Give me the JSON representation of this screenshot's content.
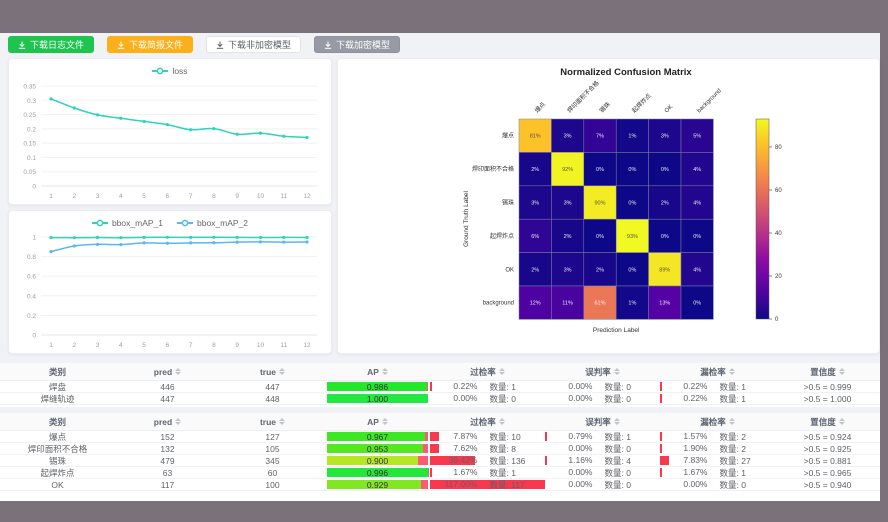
{
  "toolbar": {
    "buttons": [
      {
        "label": "下载日志文件",
        "bg": "#1fc44f",
        "fg": "#ffffff",
        "border": "#1fc44f",
        "icon": "download-icon"
      },
      {
        "label": "下载简报文件",
        "bg": "#fbb01b",
        "fg": "#ffffff",
        "border": "#fbb01b",
        "icon": "download-icon"
      },
      {
        "label": "下载非加密模型",
        "bg": "#ffffff",
        "fg": "#5a5e66",
        "border": "#e3e4ea",
        "icon": "download-icon"
      },
      {
        "label": "下载加密模型",
        "bg": "#979aa4",
        "fg": "#ffffff",
        "border": "#8f929c",
        "icon": "download-icon"
      }
    ]
  },
  "chart_data": [
    {
      "type": "line",
      "name": "loss-chart",
      "x": [
        1,
        2,
        3,
        4,
        5,
        6,
        7,
        8,
        9,
        10,
        11,
        12
      ],
      "yticks": [
        0,
        0.05,
        0.1,
        0.15,
        0.2,
        0.25,
        0.3,
        0.35
      ],
      "ylim": [
        0,
        0.35
      ],
      "legend_position": "top",
      "grid": true,
      "series": [
        {
          "name": "loss",
          "color": "#2fd3b6",
          "values": [
            0.305,
            0.273,
            0.249,
            0.237,
            0.226,
            0.215,
            0.197,
            0.201,
            0.181,
            0.185,
            0.174,
            0.17
          ]
        }
      ]
    },
    {
      "type": "line",
      "name": "map-chart",
      "x": [
        1,
        2,
        3,
        4,
        5,
        6,
        7,
        8,
        9,
        10,
        11,
        12
      ],
      "yticks": [
        0,
        0.2,
        0.4,
        0.6,
        0.8,
        1
      ],
      "ylim": [
        0,
        1
      ],
      "legend_position": "top",
      "grid": true,
      "series": [
        {
          "name": "bbox_mAP_1",
          "color": "#2fd3b6",
          "values": [
            0.994,
            0.993,
            0.995,
            0.993,
            0.996,
            0.997,
            0.996,
            0.997,
            0.996,
            0.995,
            0.996,
            0.995
          ]
        },
        {
          "name": "bbox_mAP_2",
          "color": "#5ab8f0",
          "values": [
            0.851,
            0.908,
            0.925,
            0.922,
            0.94,
            0.936,
            0.94,
            0.941,
            0.948,
            0.95,
            0.948,
            0.949
          ]
        }
      ]
    },
    {
      "type": "heatmap",
      "name": "confusion-matrix",
      "title": "Normalized Confusion Matrix",
      "xlabel": "Prediction Label",
      "ylabel": "Ground Truth Label",
      "categories": [
        "爆点",
        "焊印面积不合格",
        "锡珠",
        "起焊炸点",
        "OK",
        "background"
      ],
      "matrix": [
        [
          81,
          3,
          7,
          1,
          3,
          5
        ],
        [
          2,
          92,
          0,
          0,
          0,
          4
        ],
        [
          3,
          3,
          90,
          0,
          2,
          4
        ],
        [
          6,
          2,
          0,
          93,
          0,
          0
        ],
        [
          2,
          3,
          2,
          0,
          89,
          4
        ],
        [
          12,
          11,
          61,
          1,
          13,
          0
        ]
      ],
      "vmax": 93,
      "colorbar_ticks": [
        0,
        20,
        40,
        60,
        80
      ],
      "colormap": "plasma"
    }
  ],
  "tables": {
    "headers": [
      "类别",
      "pred",
      "true",
      "AP",
      "过检率",
      "误判率",
      "漏检率",
      "置信度"
    ],
    "sortable": [
      false,
      true,
      true,
      true,
      true,
      true,
      true,
      true
    ],
    "quantity_label": "数量:",
    "groups": [
      {
        "rows": [
          {
            "category": "焊盘",
            "pred": "446",
            "true": "447",
            "ap": 0.986,
            "over": {
              "pct": "0.22%",
              "val": 0.22,
              "count": "1"
            },
            "mis": {
              "pct": "0.00%",
              "val": 0,
              "count": "0"
            },
            "miss": {
              "pct": "0.22%",
              "val": 0.22,
              "count": "1"
            },
            "conf": ">0.5 = 0.999"
          },
          {
            "category": "焊缝轨迹",
            "pred": "447",
            "true": "448",
            "ap": 1.0,
            "over": {
              "pct": "0.00%",
              "val": 0,
              "count": "0"
            },
            "mis": {
              "pct": "0.00%",
              "val": 0,
              "count": "0"
            },
            "miss": {
              "pct": "0.22%",
              "val": 0.22,
              "count": "1"
            },
            "conf": ">0.5 = 1.000"
          }
        ]
      },
      {
        "rows": [
          {
            "category": "爆点",
            "pred": "152",
            "true": "127",
            "ap": 0.967,
            "over": {
              "pct": "7.87%",
              "val": 7.87,
              "count": "10"
            },
            "mis": {
              "pct": "0.79%",
              "val": 0.79,
              "count": "1"
            },
            "miss": {
              "pct": "1.57%",
              "val": 1.57,
              "count": "2"
            },
            "conf": ">0.5 = 0.924"
          },
          {
            "category": "焊印面积不合格",
            "pred": "132",
            "true": "105",
            "ap": 0.953,
            "over": {
              "pct": "7.62%",
              "val": 7.62,
              "count": "8"
            },
            "mis": {
              "pct": "0.00%",
              "val": 0,
              "count": "0"
            },
            "miss": {
              "pct": "1.90%",
              "val": 1.9,
              "count": "2"
            },
            "conf": ">0.5 = 0.925"
          },
          {
            "category": "锡珠",
            "pred": "479",
            "true": "345",
            "ap": 0.9,
            "over": {
              "pct": "39.42%",
              "val": 39.42,
              "count": "136"
            },
            "mis": {
              "pct": "1.16%",
              "val": 1.16,
              "count": "4"
            },
            "miss": {
              "pct": "7.83%",
              "val": 7.83,
              "count": "27"
            },
            "conf": ">0.5 = 0.881"
          },
          {
            "category": "起焊炸点",
            "pred": "63",
            "true": "60",
            "ap": 0.996,
            "over": {
              "pct": "1.67%",
              "val": 1.67,
              "count": "1"
            },
            "mis": {
              "pct": "0.00%",
              "val": 0,
              "count": "0"
            },
            "miss": {
              "pct": "1.67%",
              "val": 1.67,
              "count": "1"
            },
            "conf": ">0.5 = 0.965"
          },
          {
            "category": "OK",
            "pred": "117",
            "true": "100",
            "ap": 0.929,
            "over": {
              "pct": "117.00%",
              "val": 117,
              "count": "117"
            },
            "mis": {
              "pct": "0.00%",
              "val": 0,
              "count": "0"
            },
            "miss": {
              "pct": "0.00%",
              "val": 0,
              "count": "0"
            },
            "conf": ">0.5 = 0.940"
          }
        ]
      }
    ]
  },
  "colors": {
    "frame": "#7a717b",
    "page_bg": "#f1f2f6",
    "teal": "#2fd3b6",
    "blue": "#5ab8f0",
    "red_bar": "#f8384e"
  }
}
